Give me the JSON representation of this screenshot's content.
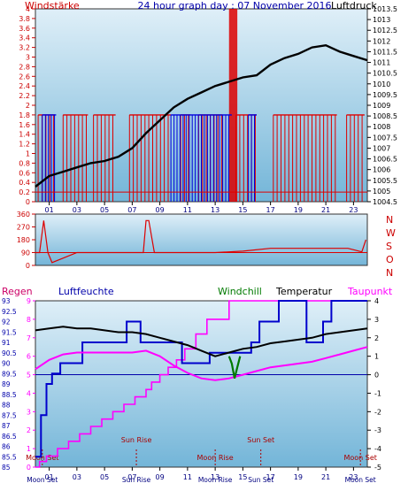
{
  "header": {
    "left": "Windstärke",
    "center": "24 hour graph day : 07 November 2016",
    "right": "Luftdruck"
  },
  "colors": {
    "wind": "#dd0000",
    "pressure": "#000000",
    "gust": "#0000dd",
    "direction": "#dd0000",
    "rain": "#0000ff",
    "humidity": "#0000cc",
    "windchill": "#007a00",
    "temperature": "#000000",
    "dewpoint": "#ff00ff",
    "panel_top": "#dfeff8",
    "panel_bottom": "#73b5d8"
  },
  "chart_data": [
    {
      "type": "line",
      "title": "24 hour graph day : 07 November 2016",
      "y_left_label": "Windstärke",
      "y_right_label": "Luftdruck",
      "y_left_ticks": [
        "0",
        "0.2",
        "0.4",
        "0.6",
        "0.8",
        "1",
        "1.2",
        "1.4",
        "1.6",
        "1.8",
        "2",
        "2.2",
        "2.4",
        "2.6",
        "2.8",
        "3",
        "3.2",
        "3.4",
        "3.6",
        "3.8",
        "4"
      ],
      "y_left_range": [
        0,
        4
      ],
      "y_right_ticks": [
        "1004.5",
        "1005",
        "1005.5",
        "1006",
        "1006.5",
        "1007",
        "1007.5",
        "1008",
        "1008.5",
        "1009",
        "1009.5",
        "1010",
        "1010.5",
        "1011",
        "1011.5",
        "1012",
        "1012.5",
        "1013",
        "1013.5"
      ],
      "y_right_range": [
        1004.5,
        1013.5
      ],
      "x_range": [
        0,
        24
      ],
      "x_ticks": [
        "01",
        "03",
        "05",
        "07",
        "09",
        "11",
        "13",
        "15",
        "17",
        "19",
        "21",
        "23"
      ],
      "series": [
        {
          "name": "Luftdruck",
          "axis": "right",
          "x": [
            0,
            1,
            2,
            3,
            4,
            5,
            6,
            7,
            8,
            9,
            10,
            11,
            12,
            13,
            14,
            15,
            16,
            17,
            18,
            19,
            20,
            21,
            22,
            23,
            24
          ],
          "y": [
            1005.2,
            1005.7,
            1005.9,
            1006.1,
            1006.3,
            1006.4,
            1006.6,
            1007.0,
            1007.7,
            1008.3,
            1008.9,
            1009.3,
            1009.6,
            1009.9,
            1010.1,
            1010.3,
            1010.4,
            1010.9,
            1011.2,
            1011.4,
            1011.7,
            1011.8,
            1011.5,
            1011.3,
            1011.1
          ]
        },
        {
          "name": "Windstärke",
          "axis": "left",
          "bursts": [
            [
              0.2,
              1.4
            ],
            [
              2.0,
              3.8
            ],
            [
              4.2,
              5.8
            ],
            [
              6.8,
              9.8
            ],
            [
              10.5,
              11.2
            ],
            [
              11.8,
              13.5
            ],
            [
              14.5,
              16.0
            ],
            [
              17.2,
              21.8
            ],
            [
              22.5,
              23.8
            ]
          ],
          "level": 1.8,
          "peaks": [
            [
              14.0,
              14.6,
              4.0
            ]
          ]
        },
        {
          "name": "Böen",
          "axis": "left",
          "bursts": [
            [
              0.5,
              1.5
            ],
            [
              9.8,
              14.2
            ],
            [
              15.4,
              16.0
            ]
          ],
          "level": 1.8
        }
      ]
    },
    {
      "type": "line",
      "title": "",
      "y_left_ticks": [
        "0",
        "90",
        "180",
        "270",
        "360"
      ],
      "y_left_range": [
        0,
        360
      ],
      "y_right_labels": [
        "N",
        "W",
        "S",
        "O",
        "N"
      ],
      "x_range": [
        0,
        24
      ],
      "series": [
        {
          "name": "Windrichtung",
          "x": [
            0,
            0.3,
            0.6,
            0.9,
            1.2,
            3,
            5,
            7,
            7.8,
            8.0,
            8.2,
            8.6,
            10,
            13,
            15,
            17,
            19,
            21,
            22.6,
            23.6,
            23.9
          ],
          "y": [
            90,
            90,
            315,
            90,
            20,
            90,
            90,
            90,
            90,
            315,
            315,
            90,
            90,
            90,
            100,
            120,
            120,
            120,
            120,
            95,
            180
          ]
        }
      ]
    },
    {
      "type": "line",
      "title": "",
      "labels": {
        "rain": "Regen",
        "humidity": "Luftfeuchte",
        "windchill": "Windchill",
        "temperature": "Temperatur",
        "dewpoint": "Taupunkt"
      },
      "y_left_ticks": [
        "0",
        "1",
        "2",
        "3",
        "4",
        "5",
        "6",
        "7",
        "8",
        "9"
      ],
      "y_left_range": [
        0,
        9
      ],
      "y_humidity_ticks": [
        "85",
        "85.5",
        "86",
        "86.5",
        "87",
        "87.5",
        "88",
        "88.5",
        "89",
        "89.5",
        "90",
        "90.5",
        "91",
        "91.5",
        "92",
        "92.5",
        "93"
      ],
      "y_humidity_range": [
        85,
        93
      ],
      "y_right_ticks": [
        "-5",
        "-4",
        "-3",
        "-2",
        "-1",
        "0",
        "1",
        "2",
        "3",
        "4"
      ],
      "y_right_range": [
        -5,
        4
      ],
      "x_range": [
        0,
        24
      ],
      "x_ticks": [
        "01",
        "03",
        "05",
        "07",
        "09",
        "11",
        "13",
        "15",
        "17",
        "19",
        "21",
        "23"
      ],
      "series": [
        {
          "name": "Regen",
          "axis": "left",
          "step": true,
          "x": [
            0,
            0.3,
            0.8,
            1.6,
            2.4,
            3.2,
            4.0,
            4.8,
            5.6,
            6.4,
            7.2,
            8.0,
            8.4,
            9.0,
            9.6,
            10.2,
            10.8,
            11.6,
            12.4,
            14.0,
            24.0
          ],
          "y": [
            0,
            0.3,
            0.6,
            1.0,
            1.4,
            1.8,
            2.2,
            2.6,
            3.0,
            3.4,
            3.8,
            4.2,
            4.6,
            5.0,
            5.4,
            5.8,
            6.4,
            7.2,
            8.0,
            9.0,
            9.0
          ]
        },
        {
          "name": "Luftfeuchte",
          "axis": "humidity",
          "step": true,
          "x": [
            0,
            0.4,
            0.8,
            1.2,
            1.8,
            3.4,
            6.6,
            7.6,
            10.6,
            12.6,
            15.6,
            16.2,
            17.6,
            19.6,
            20.8,
            21.4,
            24.0
          ],
          "y": [
            85.5,
            87.5,
            89,
            89.5,
            90,
            91,
            92,
            91,
            90,
            90.5,
            91,
            92,
            93,
            91,
            92,
            93,
            93
          ]
        },
        {
          "name": "Windchill",
          "axis": "right",
          "x": [
            14.0,
            14.2,
            14.4,
            14.6,
            14.8
          ],
          "y": [
            1.0,
            0.6,
            -0.2,
            0.4,
            1.0
          ]
        },
        {
          "name": "Temperatur",
          "axis": "right",
          "x": [
            0,
            1,
            2,
            3,
            4,
            5,
            6,
            7,
            8,
            9,
            10,
            11,
            12,
            13,
            14,
            15,
            16,
            17,
            18,
            19,
            20,
            21,
            22,
            23,
            24
          ],
          "y": [
            2.4,
            2.5,
            2.6,
            2.5,
            2.5,
            2.4,
            2.3,
            2.3,
            2.2,
            2.0,
            1.8,
            1.6,
            1.3,
            1.0,
            1.2,
            1.4,
            1.5,
            1.7,
            1.8,
            1.9,
            2.0,
            2.2,
            2.3,
            2.4,
            2.5
          ]
        },
        {
          "name": "Taupunkt",
          "axis": "right",
          "x": [
            0,
            1,
            2,
            3,
            4,
            5,
            6,
            7,
            8,
            9,
            10,
            11,
            12,
            13,
            14,
            15,
            16,
            17,
            18,
            19,
            20,
            21,
            22,
            23,
            24
          ],
          "y": [
            0.3,
            0.8,
            1.1,
            1.2,
            1.2,
            1.2,
            1.2,
            1.2,
            1.3,
            1.0,
            0.5,
            0.1,
            -0.2,
            -0.3,
            -0.2,
            0.0,
            0.2,
            0.4,
            0.5,
            0.6,
            0.7,
            0.9,
            1.1,
            1.3,
            1.5
          ]
        }
      ],
      "events": [
        {
          "label": "Sun Rise",
          "time": 7.3
        },
        {
          "label": "Sun Set",
          "time": 16.3
        },
        {
          "label": "Moon Set",
          "time": 0.5
        },
        {
          "label": "Moon Rise",
          "time": 13.0
        },
        {
          "label": "Moon Set",
          "time": 23.5
        }
      ]
    }
  ]
}
